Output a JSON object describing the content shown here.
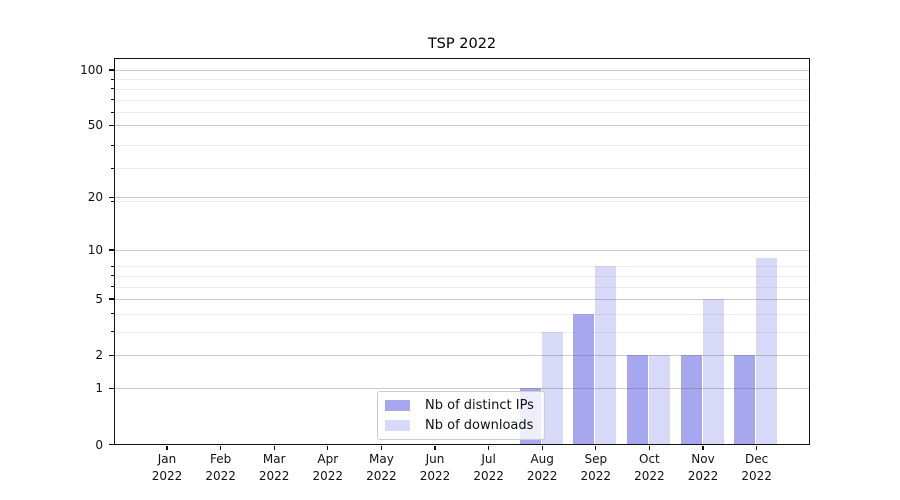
{
  "chart_data": {
    "type": "bar",
    "title": "TSP 2022",
    "categories": [
      "Jan 2022",
      "Feb 2022",
      "Mar 2022",
      "Apr 2022",
      "May 2022",
      "Jun 2022",
      "Jul 2022",
      "Aug 2022",
      "Sep 2022",
      "Oct 2022",
      "Nov 2022",
      "Dec 2022"
    ],
    "series": [
      {
        "name": "Nb of distinct IPs",
        "color": "#a7a7ef",
        "values": [
          0,
          0,
          0,
          0,
          0,
          0,
          0,
          1,
          4,
          2,
          2,
          2
        ]
      },
      {
        "name": "Nb of downloads",
        "color": "#d8d8f8",
        "values": [
          0,
          0,
          0,
          0,
          0,
          0,
          0,
          3,
          8,
          2,
          5,
          9
        ]
      }
    ],
    "xlabel": "",
    "ylabel": "",
    "yscale": "log1p",
    "ylim": [
      0,
      116
    ],
    "y_major_ticks": [
      0,
      1,
      2,
      5,
      10,
      20,
      50,
      100
    ],
    "y_minor_ticks": [
      3,
      4,
      6,
      7,
      8,
      19,
      29,
      39,
      59,
      69,
      79,
      89
    ],
    "grid": "horizontal",
    "legend_position": "lower-center"
  },
  "colors": {
    "background": "#ffffff",
    "spine": "#111111",
    "grid_major": "#cfcfcf",
    "grid_minor": "#ececec",
    "series_dark": "#a7a7ef",
    "series_light": "#d8d8f8",
    "legend_border": "#cccccc"
  }
}
